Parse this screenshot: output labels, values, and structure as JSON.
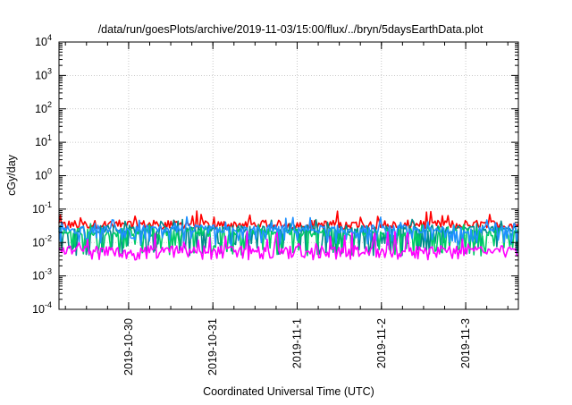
{
  "chart_data": {
    "type": "line",
    "title": "/data/run/goesPlots/archive/2019-11-03/15:00/flux/../bryn/5daysEarthData.plot",
    "xlabel": "Coordinated Universal Time (UTC)",
    "ylabel": "cGy/day",
    "yscale": "log",
    "ylim": [
      0.0001,
      10000
    ],
    "xlim": [
      "2019-10-29 04:10",
      "2019-11-03 15:00"
    ],
    "grid": true,
    "x_ticks": [
      {
        "label": "2019-10-30",
        "value": "2019-10-30 00:00"
      },
      {
        "label": "2019-10-31",
        "value": "2019-10-31 00:00"
      },
      {
        "label": "2019-11-1",
        "value": "2019-11-01 00:00"
      },
      {
        "label": "2019-11-2",
        "value": "2019-11-02 00:00"
      },
      {
        "label": "2019-11-3",
        "value": "2019-11-03 00:00"
      }
    ],
    "y_ticks": [
      {
        "base": "10",
        "exp": "-4",
        "value": 0.0001
      },
      {
        "base": "10",
        "exp": "-3",
        "value": 0.001
      },
      {
        "base": "10",
        "exp": "-2",
        "value": 0.01
      },
      {
        "base": "10",
        "exp": "-1",
        "value": 0.1
      },
      {
        "base": "10",
        "exp": "0",
        "value": 1
      },
      {
        "base": "10",
        "exp": "1",
        "value": 10
      },
      {
        "base": "10",
        "exp": "2",
        "value": 100
      },
      {
        "base": "10",
        "exp": "3",
        "value": 1000
      },
      {
        "base": "10",
        "exp": "4",
        "value": 10000
      }
    ],
    "series": [
      {
        "color": "#ff0000",
        "typical": 0.035,
        "min": 0.025,
        "max": 0.09
      },
      {
        "color": "#008b8b",
        "typical": 0.025,
        "min": 0.004,
        "max": 0.05
      },
      {
        "color": "#00cc66",
        "typical": 0.02,
        "min": 0.004,
        "max": 0.04
      },
      {
        "color": "#1e90ff",
        "typical": 0.025,
        "min": 0.008,
        "max": 0.06
      },
      {
        "color": "#ff00ff",
        "typical": 0.006,
        "min": 0.003,
        "max": 0.025
      }
    ]
  }
}
